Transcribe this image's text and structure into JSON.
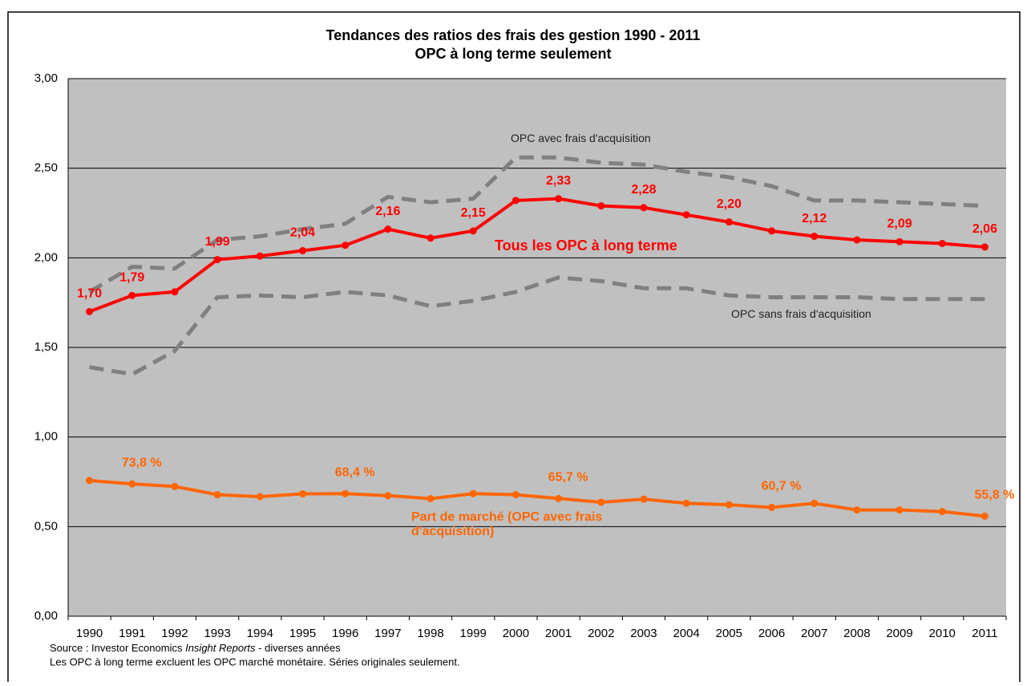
{
  "chart_data": {
    "type": "line",
    "title": "Tendances des ratios des frais des gestion 1990 - 2011",
    "subtitle": "OPC à long terme seulement",
    "categories": [
      "1990",
      "1991",
      "1992",
      "1993",
      "1994",
      "1995",
      "1996",
      "1997",
      "1998",
      "1999",
      "2000",
      "2001",
      "2002",
      "2003",
      "2004",
      "2005",
      "2006",
      "2007",
      "2008",
      "2009",
      "2010",
      "2011"
    ],
    "ylim": [
      0,
      3
    ],
    "yticks": [
      {
        "value": 0,
        "label": "0,00"
      },
      {
        "value": 0.5,
        "label": "0,50"
      },
      {
        "value": 1,
        "label": "1,00"
      },
      {
        "value": 1.5,
        "label": "1,50"
      },
      {
        "value": 2,
        "label": "2,00"
      },
      {
        "value": 2.5,
        "label": "2,50"
      },
      {
        "value": 3,
        "label": "3,00"
      }
    ],
    "grid": true,
    "series": [
      {
        "name": "OPC avec frais d'acquisition",
        "color": "#808080",
        "dashed": true,
        "markers": false,
        "values": [
          1.81,
          1.95,
          1.94,
          2.1,
          2.12,
          2.16,
          2.19,
          2.34,
          2.31,
          2.33,
          2.56,
          2.56,
          2.53,
          2.52,
          2.48,
          2.45,
          2.4,
          2.32,
          2.32,
          2.31,
          2.3,
          2.29
        ]
      },
      {
        "name": "OPC sans frais d'acquisition",
        "color": "#808080",
        "dashed": true,
        "markers": false,
        "values": [
          1.39,
          1.35,
          1.48,
          1.78,
          1.79,
          1.78,
          1.81,
          1.79,
          1.73,
          1.76,
          1.81,
          1.89,
          1.87,
          1.83,
          1.83,
          1.79,
          1.78,
          1.78,
          1.78,
          1.77,
          1.77,
          1.77
        ]
      },
      {
        "name": "Tous les OPC à long terme",
        "color": "#ff0000",
        "dashed": false,
        "markers": true,
        "values": [
          1.7,
          1.79,
          1.81,
          1.99,
          2.01,
          2.04,
          2.07,
          2.16,
          2.11,
          2.15,
          2.32,
          2.33,
          2.29,
          2.28,
          2.24,
          2.2,
          2.15,
          2.12,
          2.1,
          2.09,
          2.08,
          2.06
        ],
        "value_labels": [
          "1,70",
          "1,79",
          null,
          "1,99",
          null,
          "2,04",
          null,
          "2,16",
          null,
          "2,15",
          null,
          "2,33",
          null,
          "2,28",
          null,
          "2,20",
          null,
          "2,12",
          null,
          "2,09",
          null,
          "2,06"
        ]
      },
      {
        "name": "Part de marché (OPC avec frais d'acquisition)",
        "color": "#ff6600",
        "dashed": false,
        "markers": true,
        "values": [
          0.757,
          0.738,
          0.724,
          0.678,
          0.667,
          0.683,
          0.684,
          0.673,
          0.656,
          0.684,
          0.678,
          0.657,
          0.636,
          0.653,
          0.63,
          0.622,
          0.607,
          0.63,
          0.593,
          0.593,
          0.584,
          0.558
        ],
        "value_labels": [
          null,
          "73,8 %",
          null,
          null,
          null,
          null,
          "68,4 %",
          null,
          null,
          null,
          null,
          "65,7 %",
          null,
          null,
          null,
          null,
          "60,7 %",
          null,
          null,
          null,
          null,
          "55,8 %"
        ]
      }
    ],
    "source_prefix": "Source : Investor Economics",
    "source_italic": "Insight Reports",
    "source_suffix": "- diverses années",
    "note": "Les OPC à long terme excluent les OPC marché monétaire. Séries originales seulement."
  }
}
